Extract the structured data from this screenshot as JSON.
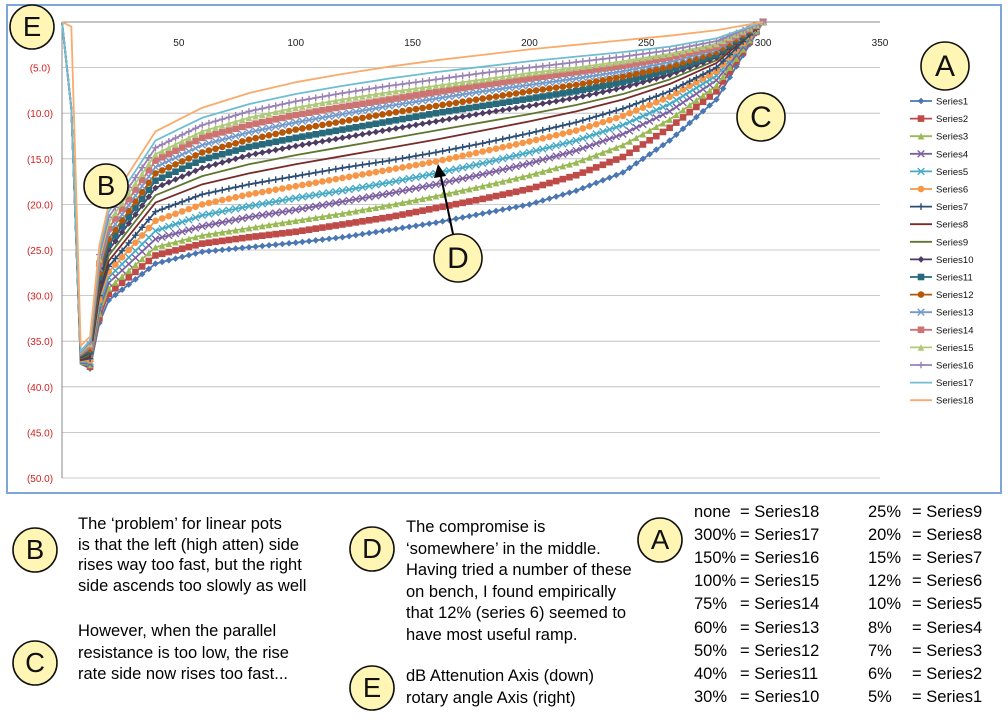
{
  "chart_data": {
    "type": "line",
    "title": "",
    "xlabel": "",
    "ylabel": "",
    "xlim": [
      0,
      350
    ],
    "ylim": [
      -50,
      0
    ],
    "x_ticks": [
      "50",
      "100",
      "150",
      "200",
      "250",
      "300",
      "350"
    ],
    "y_ticks": [
      "(5.0)",
      "(10.0)",
      "(15.0)",
      "(20.0)",
      "(25.0)",
      "(30.0)",
      "(35.0)",
      "(40.0)",
      "(45.0)",
      "(50.0)"
    ],
    "grid": "horizontal",
    "legend_position": "right",
    "x_hidden_start": [
      0,
      4,
      8,
      12
    ],
    "x": [
      16,
      20,
      40,
      60,
      80,
      100,
      120,
      140,
      160,
      180,
      200,
      220,
      240,
      260,
      280,
      300
    ],
    "series": [
      {
        "name": "Series1",
        "color": "#4a77b4",
        "marker": "diamond",
        "start": [
          0,
          -9.5,
          -37.5,
          -38
        ],
        "values": [
          -33,
          -30.5,
          -26.5,
          -25.2,
          -24.7,
          -24.2,
          -23.6,
          -22.8,
          -22.0,
          -21.0,
          -20.0,
          -18.5,
          -16.5,
          -13.0,
          -8.5,
          0
        ]
      },
      {
        "name": "Series2",
        "color": "#be4b48",
        "marker": "square",
        "start": [
          0,
          -9.5,
          -37.5,
          -37.8
        ],
        "values": [
          -32.5,
          -29.8,
          -25.6,
          -24.3,
          -23.6,
          -23.0,
          -22.2,
          -21.4,
          -20.4,
          -19.4,
          -18.3,
          -16.8,
          -14.8,
          -11.6,
          -7.6,
          0
        ]
      },
      {
        "name": "Series3",
        "color": "#98b954",
        "marker": "triangle",
        "start": [
          0,
          -9.5,
          -37.5,
          -37.6
        ],
        "values": [
          -32,
          -29.2,
          -24.7,
          -23.4,
          -22.6,
          -21.8,
          -21.0,
          -20.1,
          -19.1,
          -18.0,
          -16.8,
          -15.4,
          -13.5,
          -10.7,
          -7.0,
          0
        ]
      },
      {
        "name": "Series4",
        "color": "#7d60a0",
        "marker": "x",
        "start": [
          0,
          -9.5,
          -37.4,
          -37.5
        ],
        "values": [
          -31.5,
          -28.6,
          -23.8,
          -22.4,
          -21.4,
          -20.6,
          -19.7,
          -18.8,
          -17.8,
          -16.7,
          -15.5,
          -14.1,
          -12.3,
          -9.8,
          -6.4,
          0
        ]
      },
      {
        "name": "Series5",
        "color": "#46aac5",
        "marker": "x",
        "start": [
          0,
          -9.5,
          -37.3,
          -37.3
        ],
        "values": [
          -31,
          -28.0,
          -22.9,
          -21.2,
          -20.2,
          -19.3,
          -18.5,
          -17.6,
          -16.6,
          -15.5,
          -14.3,
          -13.0,
          -11.3,
          -9.0,
          -5.9,
          0
        ]
      },
      {
        "name": "Series6",
        "color": "#f79646",
        "marker": "circle",
        "start": [
          0,
          -9.5,
          -37.2,
          -37.1
        ],
        "values": [
          -30.5,
          -27.4,
          -21.8,
          -20.0,
          -18.9,
          -18.0,
          -17.1,
          -16.2,
          -15.3,
          -14.2,
          -13.1,
          -11.9,
          -10.3,
          -8.2,
          -5.4,
          0
        ]
      },
      {
        "name": "Series7",
        "color": "#2c4d75",
        "marker": "plus",
        "start": [
          0,
          -9.5,
          -37.1,
          -36.9
        ],
        "values": [
          -30.0,
          -26.8,
          -20.8,
          -18.9,
          -17.8,
          -16.9,
          -16.0,
          -15.2,
          -14.3,
          -13.3,
          -12.2,
          -11.0,
          -9.5,
          -7.6,
          -5.0,
          0
        ]
      },
      {
        "name": "Series8",
        "color": "#772c2a",
        "marker": "none",
        "start": [
          0,
          -9.5,
          -37.0,
          -36.7
        ],
        "values": [
          -29.5,
          -26.2,
          -19.8,
          -17.8,
          -16.6,
          -15.6,
          -14.7,
          -13.8,
          -12.9,
          -11.9,
          -10.9,
          -9.8,
          -8.5,
          -6.8,
          -4.5,
          0
        ]
      },
      {
        "name": "Series9",
        "color": "#5f7530",
        "marker": "none",
        "start": [
          0,
          -9.5,
          -36.9,
          -36.5
        ],
        "values": [
          -29.0,
          -25.6,
          -19.0,
          -16.9,
          -15.6,
          -14.6,
          -13.7,
          -12.8,
          -11.9,
          -11.0,
          -10.1,
          -9.1,
          -7.9,
          -6.3,
          -4.2,
          0
        ]
      },
      {
        "name": "Series10",
        "color": "#4d3b62",
        "marker": "diamond",
        "start": [
          0,
          -9.5,
          -36.8,
          -36.3
        ],
        "values": [
          -28.5,
          -25.0,
          -18.2,
          -16.0,
          -14.6,
          -13.6,
          -12.7,
          -11.8,
          -10.9,
          -10.0,
          -9.2,
          -8.3,
          -7.2,
          -5.8,
          -3.9,
          0
        ]
      },
      {
        "name": "Series11",
        "color": "#276a7c",
        "marker": "square",
        "start": [
          0,
          -9.5,
          -36.7,
          -36.1
        ],
        "values": [
          -28.0,
          -24.4,
          -17.4,
          -15.1,
          -13.7,
          -12.7,
          -11.8,
          -10.9,
          -10.0,
          -9.2,
          -8.4,
          -7.6,
          -6.6,
          -5.3,
          -3.6,
          0
        ]
      },
      {
        "name": "Series12",
        "color": "#b65708",
        "marker": "circle",
        "start": [
          0,
          -9.5,
          -36.6,
          -35.9
        ],
        "values": [
          -27.5,
          -23.8,
          -16.6,
          -14.3,
          -12.9,
          -11.8,
          -10.9,
          -10.0,
          -9.2,
          -8.4,
          -7.6,
          -6.9,
          -6.0,
          -4.9,
          -3.3,
          0
        ]
      },
      {
        "name": "Series13",
        "color": "#729aca",
        "marker": "x",
        "start": [
          0,
          -9.5,
          -36.5,
          -35.7
        ],
        "values": [
          -27.0,
          -23.2,
          -15.9,
          -13.5,
          -12.1,
          -11.0,
          -10.1,
          -9.2,
          -8.4,
          -7.6,
          -6.9,
          -6.2,
          -5.4,
          -4.4,
          -3.0,
          0
        ]
      },
      {
        "name": "Series14",
        "color": "#cd7371",
        "marker": "square",
        "start": [
          0,
          -9.5,
          -36.4,
          -35.5
        ],
        "values": [
          -26.5,
          -22.6,
          -15.2,
          -12.7,
          -11.3,
          -10.2,
          -9.3,
          -8.5,
          -7.7,
          -6.9,
          -6.2,
          -5.5,
          -4.8,
          -3.9,
          -2.7,
          0
        ]
      },
      {
        "name": "Series15",
        "color": "#afc97a",
        "marker": "triangle",
        "start": [
          0,
          -9.5,
          -36.3,
          -35.3
        ],
        "values": [
          -26.0,
          -22.0,
          -14.5,
          -12.0,
          -10.5,
          -9.4,
          -8.5,
          -7.7,
          -7.0,
          -6.3,
          -5.6,
          -5.0,
          -4.3,
          -3.5,
          -2.4,
          0
        ]
      },
      {
        "name": "Series16",
        "color": "#9983b5",
        "marker": "plus",
        "start": [
          0,
          -9.5,
          -36.2,
          -35.1
        ],
        "values": [
          -25.5,
          -21.4,
          -13.8,
          -11.3,
          -9.8,
          -8.7,
          -7.8,
          -7.0,
          -6.3,
          -5.6,
          -5.0,
          -4.4,
          -3.8,
          -3.1,
          -2.1,
          0
        ]
      },
      {
        "name": "Series17",
        "color": "#6fbdd1",
        "marker": "none",
        "start": [
          0,
          -9.5,
          -36.1,
          -34.9
        ],
        "values": [
          -25.0,
          -20.8,
          -13.0,
          -10.5,
          -9.0,
          -7.9,
          -7.0,
          -6.2,
          -5.5,
          -4.9,
          -4.3,
          -3.8,
          -3.3,
          -2.7,
          -1.8,
          0
        ]
      },
      {
        "name": "Series18",
        "color": "#f9ab6b",
        "marker": "none",
        "start": [
          0,
          -0.5,
          -35.5,
          -34.5
        ],
        "values": [
          -24.5,
          -20.0,
          -12.0,
          -9.4,
          -7.8,
          -6.6,
          -5.7,
          -4.9,
          -4.2,
          -3.6,
          -3.0,
          -2.5,
          -2.0,
          -1.5,
          -0.9,
          0
        ]
      }
    ],
    "annotations": [
      {
        "label": "A"
      },
      {
        "label": "B"
      },
      {
        "label": "C"
      },
      {
        "label": "D"
      },
      {
        "label": "E"
      }
    ]
  },
  "notes": {
    "B": {
      "badge": "B",
      "lines": [
        "The ‘problem’ for linear pots",
        "is that the left (high atten) side",
        "rises way too fast, but the right",
        "side ascends too slowly as well"
      ]
    },
    "C": {
      "badge": "C",
      "lines": [
        "However, when the parallel",
        "resistance is too low, the rise",
        "rate side now rises too fast..."
      ]
    },
    "D": {
      "badge": "D",
      "lines": [
        "The compromise is",
        "‘somewhere’ in the middle.",
        "Having tried a number of these",
        "on bench, I found empirically",
        "that 12% (series 6) seemed to",
        "have most useful ramp."
      ]
    },
    "E": {
      "badge": "E",
      "lines": [
        "dB Attenution Axis (down)",
        "rotary angle Axis (right)"
      ]
    },
    "A": {
      "badge": "A",
      "left": [
        [
          "none",
          "= Series18"
        ],
        [
          "300%",
          "= Series17"
        ],
        [
          "150%",
          "= Series16"
        ],
        [
          "100%",
          "= Series15"
        ],
        [
          "75%",
          "= Series14"
        ],
        [
          "60%",
          "= Series13"
        ],
        [
          "50%",
          "= Series12"
        ],
        [
          "40%",
          "= Series11"
        ],
        [
          "30%",
          "= Series10"
        ]
      ],
      "right": [
        [
          "25%",
          "= Series9"
        ],
        [
          "20%",
          "= Series8"
        ],
        [
          "15%",
          "= Series7"
        ],
        [
          "12%",
          "= Series6"
        ],
        [
          "10%",
          "= Series5"
        ],
        [
          "8%",
          "= Series4"
        ],
        [
          "7%",
          "= Series3"
        ],
        [
          "6%",
          "= Series2"
        ],
        [
          "5%",
          "= Series1"
        ]
      ]
    }
  },
  "colors": {
    "badge_fill": "#fff5b4",
    "frame_border": "#7ea6d8",
    "y_tick_color": "#d42020",
    "grid": "#b8b8b8"
  }
}
